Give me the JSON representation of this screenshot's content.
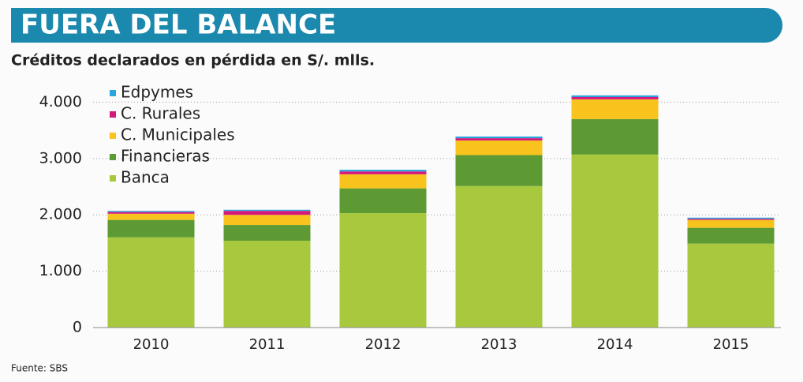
{
  "chart_data": {
    "type": "stacked_bar",
    "title": "FUERA DEL BALANCE",
    "subtitle": "Créditos declarados en pérdida en S/. mlls.",
    "source": "Fuente: SBS",
    "categories": [
      "2010",
      "2011",
      "2012",
      "2013",
      "2014",
      "2015"
    ],
    "series": [
      {
        "name": "Banca",
        "color": "#a8c83e",
        "values": [
          1600,
          1540,
          2030,
          2510,
          3070,
          1490
        ]
      },
      {
        "name": "Financieras",
        "color": "#5e9a33",
        "values": [
          310,
          280,
          440,
          550,
          630,
          280
        ]
      },
      {
        "name": "C. Municipales",
        "color": "#f7c31c",
        "values": [
          110,
          180,
          250,
          260,
          350,
          140
        ]
      },
      {
        "name": "C. Rurales",
        "color": "#d4187c",
        "values": [
          30,
          70,
          50,
          40,
          40,
          20
        ]
      },
      {
        "name": "Edpymes",
        "color": "#2aa6dc",
        "values": [
          20,
          20,
          30,
          30,
          30,
          20
        ]
      }
    ],
    "ylim": [
      0,
      4300
    ],
    "yticks": [
      0,
      {
        "value": 1000,
        "label": "1.000"
      },
      {
        "value": 2000,
        "label": "2.000"
      },
      {
        "value": 3000,
        "label": "3.000"
      },
      {
        "value": 4000,
        "label": "4.000"
      }
    ],
    "grid": true
  }
}
